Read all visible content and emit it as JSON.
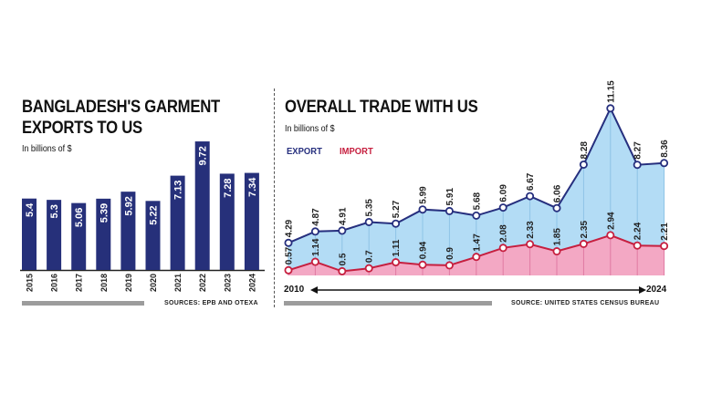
{
  "left": {
    "title_line1": "BANGLADESH'S GARMENT",
    "title_line2": "EXPORTS TO US",
    "subtitle": "In billions of $",
    "source": "SOURCES: EPB AND OTEXA"
  },
  "right": {
    "title": "OVERALL TRADE WITH US",
    "subtitle": "In billions of $",
    "legend_export": "EXPORT",
    "legend_import": "IMPORT",
    "year_start": "2010",
    "year_end": "2024",
    "source": "SOURCE: UNITED STATES CENSUS BUREAU"
  },
  "colors": {
    "bar": "#26307a",
    "export": "#262f7e",
    "import": "#c61f3f",
    "export_fill": "#b3dcf5",
    "import_fill": "#f3a8c4"
  },
  "chart_data": [
    {
      "type": "bar",
      "title": "BANGLADESH'S GARMENT EXPORTS TO US",
      "ylabel": "In billions of $",
      "categories": [
        "2015",
        "2016",
        "2017",
        "2018",
        "2019",
        "2020",
        "2021",
        "2022",
        "2023",
        "2024"
      ],
      "values": [
        5.4,
        5.3,
        5.06,
        5.39,
        5.92,
        5.22,
        7.13,
        9.72,
        7.28,
        7.34
      ],
      "value_labels": [
        "5.4",
        "5.3",
        "5.06",
        "5.39",
        "5.92",
        "5.22",
        "7.13",
        "9.72",
        "7.28",
        "7.34"
      ],
      "ylim": [
        0,
        10
      ]
    },
    {
      "type": "area",
      "title": "OVERALL TRADE WITH US",
      "ylabel": "In billions of $",
      "x": [
        2010,
        2011,
        2012,
        2013,
        2014,
        2015,
        2016,
        2017,
        2018,
        2019,
        2020,
        2021,
        2022,
        2023,
        2024
      ],
      "series": [
        {
          "name": "EXPORT",
          "values": [
            4.29,
            4.87,
            4.91,
            5.35,
            5.27,
            5.99,
            5.91,
            5.68,
            6.09,
            6.67,
            6.06,
            8.28,
            11.15,
            8.27,
            8.36
          ],
          "labels": [
            "4.29",
            "4.87",
            "4.91",
            "5.35",
            "5.27",
            "5.99",
            "5.91",
            "5.68",
            "6.09",
            "6.67",
            "6.06",
            "8.28",
            "11.15",
            "8.27",
            "8.36"
          ]
        },
        {
          "name": "IMPORT",
          "values": [
            0.57,
            1.14,
            0.5,
            0.7,
            1.11,
            0.94,
            0.9,
            1.47,
            2.08,
            2.33,
            1.85,
            2.35,
            2.94,
            2.24,
            2.21
          ],
          "labels": [
            "0.57",
            "1.14",
            "0.5",
            "0.7",
            "1.11",
            "0.94",
            "0.9",
            "1.47",
            "2.08",
            "2.33",
            "1.85",
            "2.35",
            "2.94",
            "2.24",
            "2.21"
          ]
        }
      ]
    }
  ]
}
